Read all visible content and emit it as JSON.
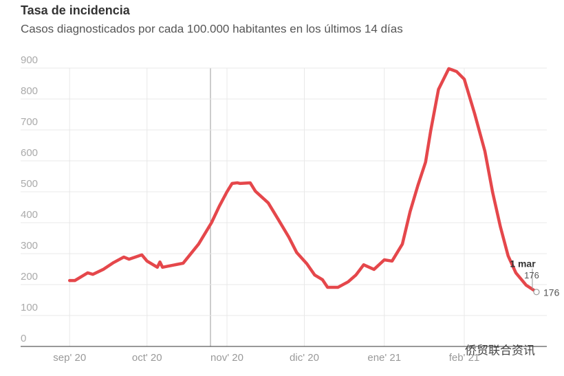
{
  "chart_data": {
    "type": "line",
    "title": "Tasa de incidencia",
    "subtitle": "Casos diagnosticados por cada 100.000 habitantes en los últimos 14 días",
    "x": [
      0,
      2,
      7,
      9,
      13,
      17,
      21,
      23,
      28,
      30,
      34,
      35,
      36,
      44,
      50,
      55,
      58,
      61,
      63,
      65,
      66,
      70,
      72,
      77,
      81,
      85,
      88,
      92,
      95,
      98,
      100,
      104,
      108,
      111,
      114,
      118,
      122,
      125,
      129,
      132,
      135,
      138,
      140,
      143,
      147,
      150,
      153,
      157,
      161,
      164,
      167,
      170,
      173,
      177,
      181
    ],
    "series": [
      {
        "name": "Tasa de incidencia",
        "color": "#e5474b",
        "values": [
          213,
          213,
          238,
          233,
          249,
          271,
          289,
          282,
          296,
          276,
          256,
          273,
          256,
          269,
          331,
          400,
          453,
          500,
          527,
          529,
          527,
          529,
          502,
          464,
          409,
          353,
          304,
          267,
          231,
          216,
          191,
          191,
          209,
          231,
          264,
          249,
          280,
          276,
          331,
          436,
          520,
          596,
          698,
          831,
          898,
          889,
          864,
          753,
          631,
          498,
          387,
          293,
          238,
          198,
          176
        ]
      }
    ],
    "xlim": [
      -19,
      185
    ],
    "xticks": [
      {
        "value": 0,
        "label": "sep' 20"
      },
      {
        "value": 30,
        "label": "oct' 20"
      },
      {
        "value": 61,
        "label": "nov' 20"
      },
      {
        "value": 91,
        "label": "dic' 20"
      },
      {
        "value": 122,
        "label": "ene' 21"
      },
      {
        "value": 153,
        "label": "feb' 21"
      }
    ],
    "ylim": [
      0,
      900
    ],
    "yticks": [
      0,
      100,
      200,
      300,
      400,
      500,
      600,
      700,
      800,
      900
    ],
    "grid": true,
    "annotation": "1 mar",
    "watermark": "侨贸联合资讯"
  }
}
